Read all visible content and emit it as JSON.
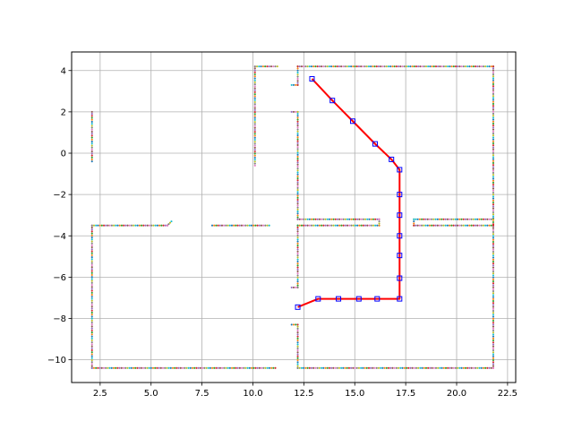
{
  "chart_data": {
    "type": "scatter",
    "title": "",
    "xlabel": "",
    "ylabel": "",
    "xlim": [
      1.1,
      22.9
    ],
    "ylim": [
      -11.1,
      4.9
    ],
    "xticks": [
      2.5,
      5.0,
      7.5,
      10.0,
      12.5,
      15.0,
      17.5,
      20.0,
      22.5
    ],
    "xtick_labels": [
      "2.5",
      "5.0",
      "7.5",
      "10.0",
      "12.5",
      "15.0",
      "17.5",
      "20.0",
      "22.5"
    ],
    "yticks": [
      4,
      2,
      0,
      -2,
      -4,
      -6,
      -8,
      -10
    ],
    "ytick_labels": [
      "4",
      "2",
      "0",
      "−2",
      "−4",
      "−6",
      "−8",
      "−10"
    ],
    "grid": true,
    "colors": {
      "path": "#ff0000",
      "waypoint_edge": "#0000ff",
      "wall_palette": [
        "#1f77b4",
        "#ff7f0e",
        "#2ca02c",
        "#d62728",
        "#9467bd",
        "#8c564b",
        "#e377c2",
        "#7f7f7f",
        "#bcbd22",
        "#17becf"
      ]
    },
    "wall_segments": [
      {
        "from": [
          2.1,
          -10.4
        ],
        "to": [
          11.1,
          -10.4
        ]
      },
      {
        "from": [
          2.1,
          -10.4
        ],
        "to": [
          2.1,
          -3.5
        ]
      },
      {
        "from": [
          2.1,
          -3.5
        ],
        "to": [
          5.8,
          -3.5
        ]
      },
      {
        "from": [
          5.8,
          -3.5
        ],
        "to": [
          6.0,
          -3.3
        ]
      },
      {
        "from": [
          8.0,
          -3.5
        ],
        "to": [
          10.8,
          -3.5
        ]
      },
      {
        "from": [
          2.1,
          -0.4
        ],
        "to": [
          2.1,
          2.0
        ]
      },
      {
        "from": [
          10.1,
          -0.6
        ],
        "to": [
          10.1,
          4.2
        ]
      },
      {
        "from": [
          10.1,
          4.2
        ],
        "to": [
          11.2,
          4.2
        ]
      },
      {
        "from": [
          11.9,
          3.3
        ],
        "to": [
          12.2,
          3.3
        ]
      },
      {
        "from": [
          12.2,
          3.3
        ],
        "to": [
          12.2,
          4.2
        ]
      },
      {
        "from": [
          12.2,
          4.2
        ],
        "to": [
          21.8,
          4.2
        ]
      },
      {
        "from": [
          21.8,
          4.2
        ],
        "to": [
          21.8,
          -10.4
        ]
      },
      {
        "from": [
          12.2,
          -10.4
        ],
        "to": [
          21.8,
          -10.4
        ]
      },
      {
        "from": [
          12.2,
          -10.4
        ],
        "to": [
          12.2,
          -8.3
        ]
      },
      {
        "from": [
          11.9,
          -8.3
        ],
        "to": [
          12.2,
          -8.3
        ]
      },
      {
        "from": [
          11.9,
          2.0
        ],
        "to": [
          12.2,
          2.0
        ]
      },
      {
        "from": [
          12.2,
          2.0
        ],
        "to": [
          12.2,
          -3.2
        ]
      },
      {
        "from": [
          12.2,
          -3.2
        ],
        "to": [
          16.2,
          -3.2
        ]
      },
      {
        "from": [
          16.2,
          -3.2
        ],
        "to": [
          16.2,
          -3.5
        ]
      },
      {
        "from": [
          12.2,
          -3.5
        ],
        "to": [
          16.2,
          -3.5
        ]
      },
      {
        "from": [
          12.2,
          -3.5
        ],
        "to": [
          12.2,
          -6.5
        ]
      },
      {
        "from": [
          11.9,
          -6.5
        ],
        "to": [
          12.2,
          -6.5
        ]
      },
      {
        "from": [
          17.9,
          -3.2
        ],
        "to": [
          21.8,
          -3.2
        ]
      },
      {
        "from": [
          17.9,
          -3.2
        ],
        "to": [
          17.9,
          -3.5
        ]
      },
      {
        "from": [
          17.9,
          -3.5
        ],
        "to": [
          21.8,
          -3.5
        ]
      }
    ],
    "path": {
      "x": [
        12.9,
        13.9,
        14.9,
        16.0,
        16.8,
        17.2,
        17.2,
        17.2,
        17.2,
        17.2,
        17.2,
        17.2,
        16.1,
        15.2,
        14.2,
        13.2,
        12.2
      ],
      "y": [
        3.6,
        2.55,
        1.55,
        0.45,
        -0.3,
        -0.8,
        -2.0,
        -3.0,
        -4.0,
        -4.95,
        -6.05,
        -7.05,
        -7.05,
        -7.05,
        -7.05,
        -7.05,
        -7.45
      ]
    },
    "waypoints": {
      "x": [
        12.9,
        13.9,
        14.9,
        16.0,
        16.8,
        17.2,
        17.2,
        17.2,
        17.2,
        17.2,
        17.2,
        17.2,
        16.1,
        15.2,
        14.2,
        13.2,
        12.2
      ],
      "y": [
        3.6,
        2.55,
        1.55,
        0.45,
        -0.3,
        -0.8,
        -2.0,
        -3.0,
        -4.0,
        -4.95,
        -6.05,
        -7.05,
        -7.05,
        -7.05,
        -7.05,
        -7.05,
        -7.45
      ]
    }
  }
}
